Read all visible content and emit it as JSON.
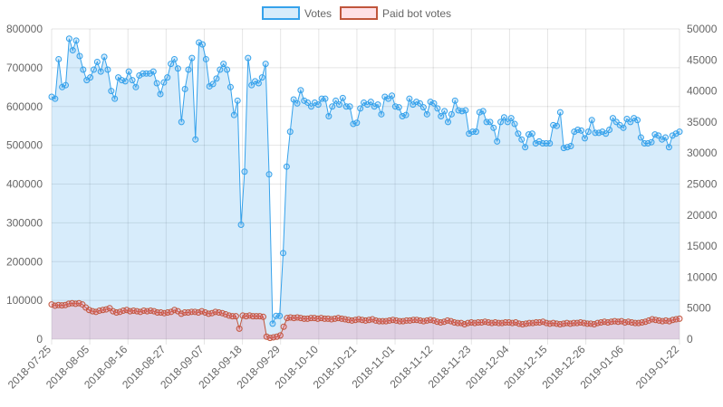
{
  "chart_data": {
    "type": "line",
    "title": "",
    "xlabel": "",
    "ylabel": "",
    "x_tick_labels": [
      "2018-07-25",
      "2018-08-05",
      "2018-08-16",
      "2018-08-27",
      "2018-09-07",
      "2018-09-18",
      "2018-09-29",
      "2018-10-10",
      "2018-10-21",
      "2018-11-01",
      "2018-11-12",
      "2018-11-23",
      "2018-12-04",
      "2018-12-15",
      "2018-12-26",
      "2019-01-06",
      "2019-01-22"
    ],
    "x_start": "2018-07-25",
    "x_end": "2019-01-22",
    "y_left": {
      "min": 0,
      "max": 800000,
      "ticks": [
        "0",
        "100000",
        "200000",
        "300000",
        "400000",
        "500000",
        "600000",
        "700000",
        "800000"
      ]
    },
    "y_right": {
      "min": 0,
      "max": 50000,
      "ticks": [
        "0",
        "5000",
        "10000",
        "15000",
        "20000",
        "25000",
        "30000",
        "35000",
        "40000",
        "45000",
        "50000"
      ]
    },
    "grid": true,
    "legend_position": "top",
    "series": [
      {
        "name": "Votes",
        "axis": "left",
        "color": "#36a2eb",
        "fill": "rgba(54,162,235,0.2)",
        "values": [
          625000,
          620000,
          722000,
          650000,
          655000,
          775000,
          745000,
          770000,
          730000,
          695000,
          668000,
          675000,
          695000,
          715000,
          690000,
          728000,
          695000,
          640000,
          620000,
          675000,
          668000,
          665000,
          690000,
          668000,
          650000,
          680000,
          685000,
          685000,
          685000,
          690000,
          660000,
          632000,
          662000,
          675000,
          710000,
          722000,
          698000,
          560000,
          645000,
          695000,
          725000,
          515000,
          765000,
          760000,
          722000,
          652000,
          658000,
          672000,
          695000,
          710000,
          695000,
          650000,
          578000,
          615000,
          295000,
          432000,
          725000,
          655000,
          665000,
          660000,
          675000,
          710000,
          425000,
          40000,
          60000,
          60000,
          222000,
          445000,
          535000,
          618000,
          608000,
          642000,
          615000,
          610000,
          600000,
          610000,
          605000,
          620000,
          620000,
          575000,
          600000,
          615000,
          605000,
          622000,
          600000,
          600000,
          555000,
          558000,
          595000,
          610000,
          605000,
          612000,
          600000,
          605000,
          580000,
          625000,
          620000,
          628000,
          600000,
          598000,
          575000,
          578000,
          620000,
          605000,
          612000,
          608000,
          598000,
          580000,
          612000,
          608000,
          595000,
          575000,
          588000,
          560000,
          580000,
          615000,
          590000,
          588000,
          590000,
          530000,
          535000,
          535000,
          585000,
          588000,
          560000,
          560000,
          545000,
          510000,
          560000,
          572000,
          560000,
          570000,
          555000,
          530000,
          515000,
          495000,
          528000,
          530000,
          505000,
          510000,
          505000,
          505000,
          505000,
          552000,
          550000,
          585000,
          493000,
          495000,
          498000,
          535000,
          540000,
          538000,
          518000,
          535000,
          565000,
          532000,
          532000,
          535000,
          530000,
          540000,
          570000,
          560000,
          552000,
          545000,
          568000,
          560000,
          570000,
          565000,
          520000,
          505000,
          505000,
          508000,
          528000,
          525000,
          515000,
          520000,
          495000,
          525000,
          530000,
          535000
        ]
      },
      {
        "name": "Paid bot votes",
        "axis": "right",
        "color": "#ff6384",
        "stroke": "#c0563c",
        "fill": "rgba(255,99,132,0.2)",
        "values": [
          5600,
          5400,
          5500,
          5450,
          5500,
          5700,
          5800,
          5700,
          5800,
          5600,
          5100,
          4700,
          4500,
          4400,
          4600,
          4700,
          4800,
          5000,
          4500,
          4300,
          4400,
          4600,
          4700,
          4500,
          4600,
          4500,
          4400,
          4600,
          4500,
          4600,
          4500,
          4300,
          4300,
          4200,
          4300,
          4400,
          4700,
          4500,
          4100,
          4300,
          4300,
          4400,
          4400,
          4300,
          4500,
          4300,
          4100,
          4200,
          4400,
          4300,
          4200,
          4000,
          3800,
          3700,
          3700,
          1700,
          3800,
          3700,
          3800,
          3700,
          3700,
          3700,
          3600,
          400,
          200,
          300,
          400,
          600,
          2000,
          3400,
          3500,
          3400,
          3500,
          3400,
          3300,
          3300,
          3400,
          3400,
          3300,
          3400,
          3300,
          3300,
          3200,
          3300,
          3400,
          3300,
          3200,
          3100,
          3000,
          3100,
          3200,
          3100,
          3000,
          3100,
          3200,
          3000,
          2900,
          2900,
          2900,
          3000,
          3100,
          3000,
          2900,
          2900,
          3000,
          3000,
          3100,
          3100,
          3000,
          2900,
          3000,
          3100,
          3000,
          2800,
          2700,
          2800,
          3000,
          2900,
          2700,
          2600,
          2600,
          2400,
          2600,
          2700,
          2600,
          2700,
          2700,
          2800,
          2700,
          2600,
          2700,
          2600,
          2600,
          2700,
          2700,
          2600,
          2700,
          2500,
          2400,
          2500,
          2600,
          2600,
          2700,
          2700,
          2800,
          2600,
          2500,
          2600,
          2500,
          2400,
          2500,
          2600,
          2500,
          2600,
          2600,
          2700,
          2600,
          2500,
          2500,
          2400,
          2600,
          2700,
          2800,
          2700,
          2800,
          2900,
          2800,
          2900,
          2700,
          2800,
          2700,
          2600,
          2600,
          2700,
          2800,
          3000,
          3200,
          3100,
          3000,
          2900,
          3000,
          2900,
          3100,
          3200,
          3300
        ]
      }
    ]
  }
}
